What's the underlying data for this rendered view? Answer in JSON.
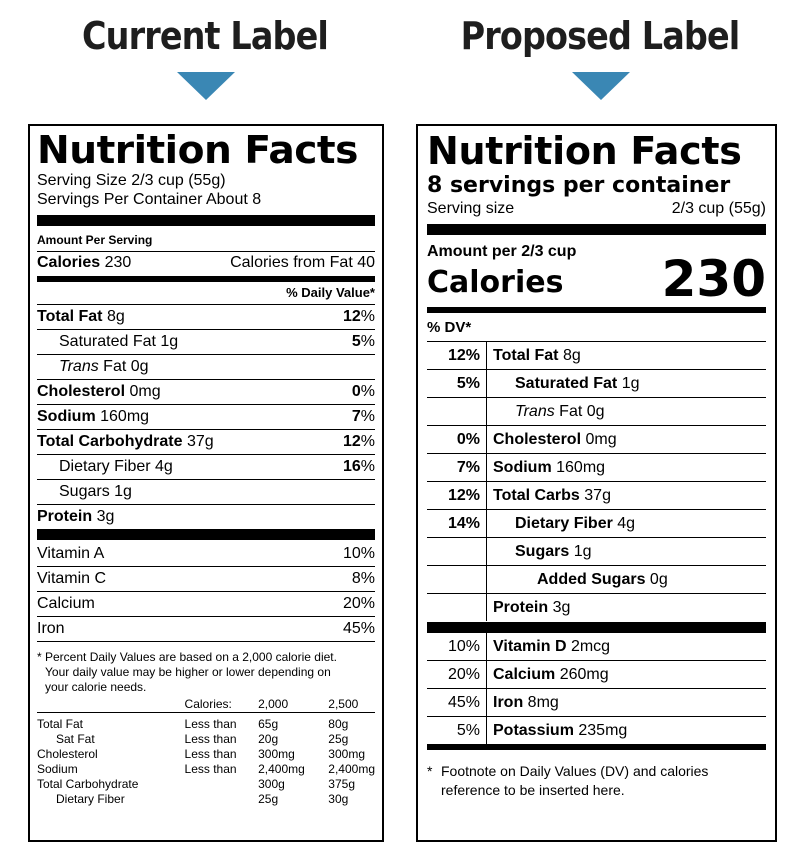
{
  "headings": {
    "current": "Current Label",
    "proposed": "Proposed Label"
  },
  "colors": {
    "arrow": "#3a87b4"
  },
  "current": {
    "title": "Nutrition Facts",
    "serving_size": "Serving Size 2/3 cup (55g)",
    "servings": "Servings Per Container About 8",
    "amount_per": "Amount Per Serving",
    "calories_label": "Calories",
    "calories_value": "230",
    "calories_fat": "Calories from Fat 40",
    "dv_header": "% Daily Value*",
    "nutrients": [
      {
        "name": "Total Fat",
        "amount": "8g",
        "dv_num": "12",
        "indent": false,
        "bold": true
      },
      {
        "name": "Saturated Fat",
        "amount": "1g",
        "dv_num": "5",
        "indent": true,
        "bold": false
      },
      {
        "name": "Trans",
        "name_suffix": " Fat",
        "amount": "0g",
        "dv_num": "",
        "indent": true,
        "bold": false,
        "italic": true
      },
      {
        "name": "Cholesterol",
        "amount": "0mg",
        "dv_num": "0",
        "indent": false,
        "bold": true
      },
      {
        "name": "Sodium",
        "amount": "160mg",
        "dv_num": "7",
        "indent": false,
        "bold": true
      },
      {
        "name": "Total Carbohydrate",
        "amount": "37g",
        "dv_num": "12",
        "indent": false,
        "bold": true
      },
      {
        "name": "Dietary Fiber",
        "amount": "4g",
        "dv_num": "16",
        "indent": true,
        "bold": false
      },
      {
        "name": "Sugars",
        "amount": "1g",
        "dv_num": "",
        "indent": true,
        "bold": false
      },
      {
        "name": "Protein",
        "amount": "3g",
        "dv_num": "",
        "indent": false,
        "bold": true
      }
    ],
    "percent_sign": "%",
    "vitamins": [
      {
        "name": "Vitamin A",
        "dv": "10%"
      },
      {
        "name": "Vitamin C",
        "dv": "8%"
      },
      {
        "name": "Calcium",
        "dv": "20%"
      },
      {
        "name": "Iron",
        "dv": "45%"
      }
    ],
    "footnote": [
      "* Percent Daily Values are based on a 2,000 calorie diet.",
      "Your daily value may be higher or lower depending on",
      "your calorie needs."
    ],
    "table_header": [
      "",
      "Calories:",
      "2,000",
      "2,500"
    ],
    "table_rows": [
      [
        "Total Fat",
        "Less than",
        "65g",
        "80g"
      ],
      [
        "Sat Fat",
        "Less than",
        "20g",
        "25g"
      ],
      [
        "Cholesterol",
        "Less than",
        "300mg",
        "300mg"
      ],
      [
        "Sodium",
        "Less than",
        "2,400mg",
        "2,400mg"
      ],
      [
        "Total Carbohydrate",
        "",
        "300g",
        "375g"
      ],
      [
        "Dietary Fiber",
        "",
        "25g",
        "30g"
      ]
    ]
  },
  "proposed": {
    "title": "Nutrition Facts",
    "servings": "8 servings per container",
    "serving_size_label": "Serving size",
    "serving_size_value": "2/3 cup (55g)",
    "amount_per": "Amount per 2/3 cup",
    "calories_label": "Calories",
    "calories_value": "230",
    "dv_header": "% DV*",
    "nutrients": [
      {
        "dv": "12%",
        "name": "Total Fat",
        "amount": "8g",
        "bold": true,
        "indent": 0
      },
      {
        "dv": "5%",
        "name": "Saturated Fat",
        "amount": "1g",
        "bold": true,
        "indent": 1
      },
      {
        "dv": "",
        "name": "Trans",
        "name_suffix": " Fat",
        "amount": "0g",
        "bold": false,
        "indent": 1,
        "italic": true
      },
      {
        "dv": "0%",
        "name": "Cholesterol",
        "amount": "0mg",
        "bold": true,
        "indent": 0
      },
      {
        "dv": "7%",
        "name": "Sodium",
        "amount": "160mg",
        "bold": true,
        "indent": 0
      },
      {
        "dv": "12%",
        "name": "Total Carbs",
        "amount": "37g",
        "bold": true,
        "indent": 0
      },
      {
        "dv": "14%",
        "name": "Dietary Fiber",
        "amount": "4g",
        "bold": true,
        "indent": 1
      },
      {
        "dv": "",
        "name": "Sugars",
        "amount": "1g",
        "bold": true,
        "indent": 1
      },
      {
        "dv": "",
        "name": "Added Sugars",
        "amount": "0g",
        "bold": true,
        "indent": 2
      },
      {
        "dv": "",
        "name": "Protein",
        "amount": "3g",
        "bold": true,
        "indent": 0
      }
    ],
    "vitamins": [
      {
        "dv": "10%",
        "name": "Vitamin D",
        "amount": "2mcg"
      },
      {
        "dv": "20%",
        "name": "Calcium",
        "amount": "260mg"
      },
      {
        "dv": "45%",
        "name": "Iron",
        "amount": "8mg"
      },
      {
        "dv": "5%",
        "name": "Potassium",
        "amount": "235mg"
      }
    ],
    "footnote_marker": "*",
    "footnote": [
      "Footnote on Daily Values (DV) and calories",
      "reference to be inserted here."
    ]
  }
}
